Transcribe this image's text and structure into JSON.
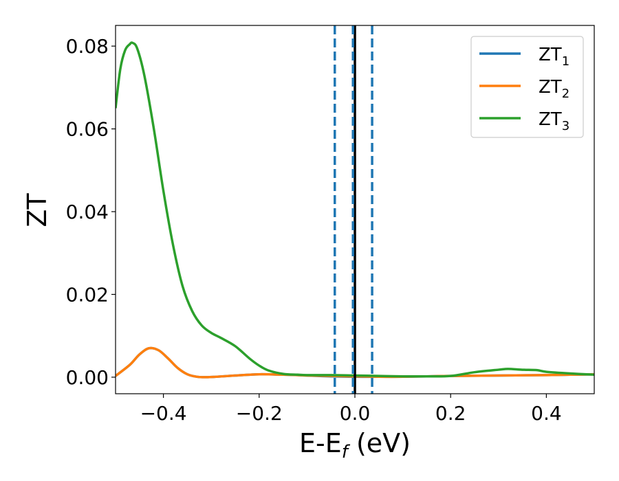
{
  "chart_data": {
    "type": "line",
    "xlabel": "E-E",
    "xlabel_subscript": "f",
    "xlabel_unit": " (eV)",
    "ylabel": "ZT",
    "xlim": [
      -0.5,
      0.5
    ],
    "ylim": [
      -0.004,
      0.085
    ],
    "x_ticks": [
      -0.4,
      -0.2,
      0.0,
      0.2,
      0.4
    ],
    "x_tick_labels": [
      "−0.4",
      "−0.2",
      "0.0",
      "0.2",
      "0.4"
    ],
    "y_ticks": [
      0.0,
      0.02,
      0.04,
      0.06,
      0.08
    ],
    "y_tick_labels": [
      "0.00",
      "0.02",
      "0.04",
      "0.06",
      "0.08"
    ],
    "grid": false,
    "legend_position": "top-right",
    "vertical_lines": [
      {
        "x": 0.0,
        "style": "solid",
        "color": "#000000"
      },
      {
        "x": -0.042,
        "style": "dashed",
        "color": "#1f77b4"
      },
      {
        "x": -0.004,
        "style": "dashed",
        "color": "#1f77b4"
      },
      {
        "x": 0.036,
        "style": "dashed",
        "color": "#1f77b4"
      }
    ],
    "series": [
      {
        "name": "ZT",
        "subscript": "1",
        "color": "#1f77b4",
        "x": [
          -0.5,
          -0.47,
          -0.45,
          -0.43,
          -0.41,
          -0.39,
          -0.37,
          -0.35,
          -0.33,
          -0.31,
          -0.29,
          -0.25,
          -0.2,
          -0.15,
          -0.12,
          -0.1,
          -0.05,
          0.0,
          0.05,
          0.1,
          0.15,
          0.2,
          0.3,
          0.4,
          0.45,
          0.5
        ],
        "y": [
          0.0003,
          0.003,
          0.0055,
          0.007,
          0.0065,
          0.0045,
          0.0022,
          0.0007,
          0.0001,
          0.0,
          0.0001,
          0.0004,
          0.0007,
          0.0006,
          0.0005,
          0.0004,
          0.0002,
          0.0001,
          0.0001,
          0.0001,
          0.0002,
          0.0003,
          0.0004,
          0.0005,
          0.0006,
          0.0007
        ]
      },
      {
        "name": "ZT",
        "subscript": "2",
        "color": "#ff7f0e",
        "x": [
          -0.5,
          -0.47,
          -0.45,
          -0.43,
          -0.41,
          -0.39,
          -0.37,
          -0.35,
          -0.33,
          -0.31,
          -0.29,
          -0.25,
          -0.2,
          -0.15,
          -0.12,
          -0.1,
          -0.05,
          0.0,
          0.05,
          0.1,
          0.15,
          0.2,
          0.3,
          0.4,
          0.45,
          0.5
        ],
        "y": [
          0.0003,
          0.003,
          0.0055,
          0.007,
          0.0065,
          0.0045,
          0.0022,
          0.0007,
          0.0001,
          0.0,
          0.0001,
          0.0004,
          0.0007,
          0.0006,
          0.0005,
          0.0004,
          0.0003,
          0.0002,
          0.0001,
          0.0001,
          0.0002,
          0.0003,
          0.0004,
          0.0005,
          0.0006,
          0.0007
        ]
      },
      {
        "name": "ZT",
        "subscript": "3",
        "color": "#2ca02c",
        "x": [
          -0.5,
          -0.49,
          -0.48,
          -0.47,
          -0.465,
          -0.455,
          -0.44,
          -0.42,
          -0.4,
          -0.38,
          -0.36,
          -0.34,
          -0.32,
          -0.3,
          -0.28,
          -0.25,
          -0.22,
          -0.2,
          -0.18,
          -0.15,
          -0.12,
          -0.1,
          -0.05,
          0.0,
          0.05,
          0.1,
          0.15,
          0.2,
          0.25,
          0.3,
          0.32,
          0.35,
          0.38,
          0.4,
          0.45,
          0.5
        ],
        "y": [
          0.065,
          0.0745,
          0.079,
          0.0805,
          0.0808,
          0.0795,
          0.073,
          0.06,
          0.045,
          0.032,
          0.022,
          0.016,
          0.0125,
          0.0107,
          0.0095,
          0.0075,
          0.0045,
          0.0028,
          0.0016,
          0.0008,
          0.0006,
          0.0005,
          0.0005,
          0.0004,
          0.0003,
          0.0002,
          0.0002,
          0.0003,
          0.0012,
          0.0018,
          0.002,
          0.0018,
          0.0017,
          0.0013,
          0.0009,
          0.0006
        ]
      }
    ]
  }
}
